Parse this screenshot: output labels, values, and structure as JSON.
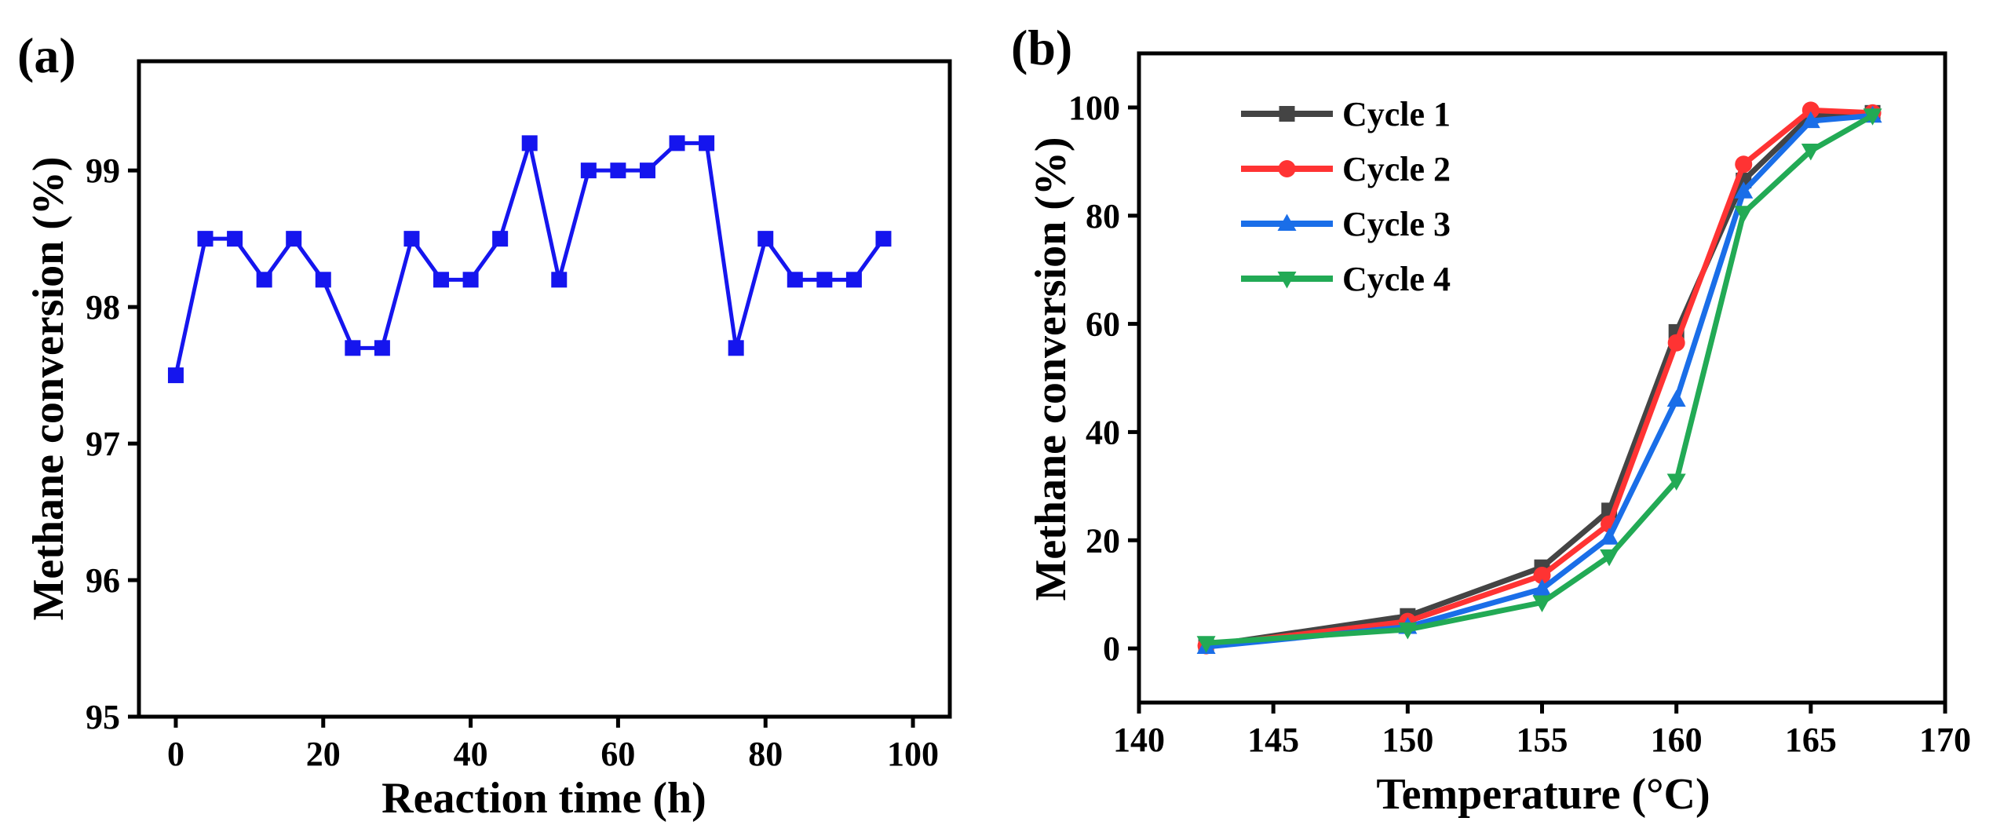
{
  "chart_data": [
    {
      "type": "line",
      "panel_label": "(a)",
      "xlabel": "Reaction time (h)",
      "ylabel": "Methane conversion (%)",
      "xlim": [
        -5,
        105
      ],
      "ylim": [
        95,
        99.8
      ],
      "xticks": [
        0,
        20,
        40,
        60,
        80,
        100
      ],
      "yticks": [
        95,
        96,
        97,
        98,
        99
      ],
      "series": [
        {
          "name": "Methane conversion",
          "color": "#1515ee",
          "marker": "square",
          "x": [
            0,
            4,
            8,
            12,
            16,
            20,
            24,
            28,
            32,
            36,
            40,
            44,
            48,
            52,
            56,
            60,
            64,
            68,
            72,
            76,
            80,
            84,
            88,
            92,
            96
          ],
          "y": [
            97.5,
            98.5,
            98.5,
            98.2,
            98.5,
            98.2,
            97.7,
            97.7,
            98.5,
            98.2,
            98.2,
            98.5,
            99.2,
            98.2,
            99.0,
            99.0,
            99.0,
            99.2,
            99.2,
            97.7,
            98.5,
            98.2,
            98.2,
            98.2,
            98.5
          ]
        }
      ]
    },
    {
      "type": "line",
      "panel_label": "(b)",
      "xlabel": "Temperature (°C)",
      "ylabel": "Methane conversion (%)",
      "xlim": [
        140,
        170
      ],
      "ylim": [
        -10,
        110
      ],
      "xticks": [
        140,
        145,
        150,
        155,
        160,
        165,
        170
      ],
      "yticks": [
        0,
        20,
        40,
        60,
        80,
        100
      ],
      "legend_position": "top-left",
      "series": [
        {
          "name": "Cycle 1",
          "color": "#444444",
          "marker": "square",
          "x": [
            142.5,
            150,
            155,
            157.5,
            160,
            162.5,
            165,
            167.3
          ],
          "y": [
            0.5,
            6,
            15,
            25.5,
            58.5,
            86.5,
            98.5,
            99
          ]
        },
        {
          "name": "Cycle 2",
          "color": "#ff3333",
          "marker": "circle",
          "x": [
            142.5,
            150,
            155,
            157.5,
            160,
            162.5,
            165,
            167.3
          ],
          "y": [
            0.5,
            5,
            13.5,
            23,
            56.5,
            89.5,
            99.5,
            99
          ]
        },
        {
          "name": "Cycle 3",
          "color": "#1a6ee8",
          "marker": "triangle-up",
          "x": [
            142.5,
            150,
            155,
            157.5,
            160,
            162.5,
            165,
            167.3
          ],
          "y": [
            0.3,
            4,
            11,
            20.5,
            46,
            84.5,
            97.5,
            98.5
          ]
        },
        {
          "name": "Cycle 4",
          "color": "#22aa55",
          "marker": "triangle-down",
          "x": [
            142.5,
            150,
            155,
            157.5,
            160,
            162.5,
            165,
            167.3
          ],
          "y": [
            1,
            3.5,
            8.5,
            17,
            31,
            80.5,
            92,
            98.5
          ]
        }
      ]
    }
  ]
}
